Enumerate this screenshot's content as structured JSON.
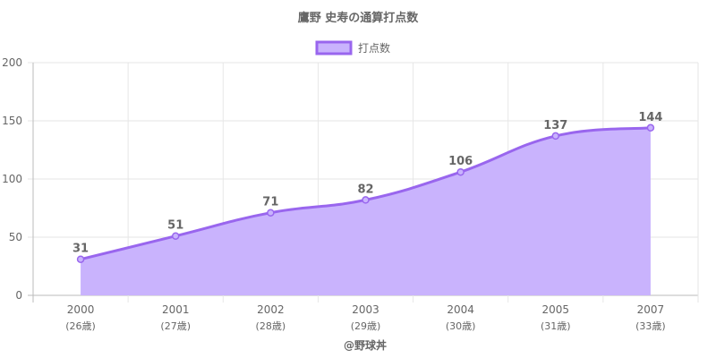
{
  "chart_data": {
    "type": "area",
    "title": "鷹野 史寿の通算打点数",
    "xlabel": "@野球丼",
    "ylabel": "",
    "categories": [
      "2000",
      "2001",
      "2002",
      "2003",
      "2004",
      "2005",
      "2007"
    ],
    "category_sublabels": [
      "(26歳)",
      "(27歳)",
      "(28歳)",
      "(29歳)",
      "(30歳)",
      "(31歳)",
      "(33歳)"
    ],
    "series": [
      {
        "name": "打点数",
        "values": [
          31,
          51,
          71,
          82,
          106,
          137,
          144
        ]
      }
    ],
    "ylim": [
      0,
      200
    ],
    "yticks": [
      "0",
      "50",
      "100",
      "150",
      "200"
    ],
    "grid": true,
    "legend_position": "top",
    "colors": {
      "line": "#9966ee",
      "fill": "#c9b3fd",
      "text": "#666666",
      "grid": "#e6e6e6"
    }
  }
}
